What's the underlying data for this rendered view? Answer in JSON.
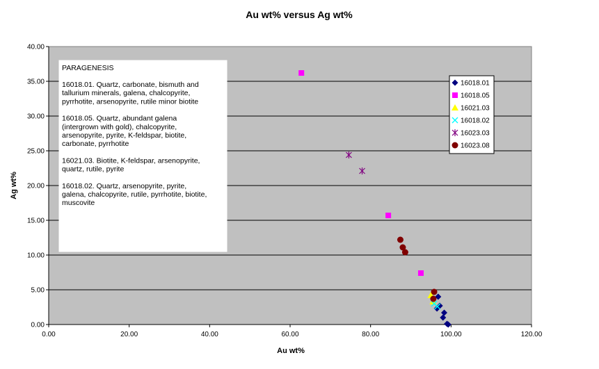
{
  "chart_data": {
    "type": "scatter",
    "title": "Au wt% versus Ag wt%",
    "xlabel": "Au wt%",
    "ylabel": "Ag wt%",
    "xlim": [
      0,
      120
    ],
    "ylim": [
      0,
      40
    ],
    "x_ticks": [
      "0.00",
      "20.00",
      "40.00",
      "60.00",
      "80.00",
      "100.00",
      "120.00"
    ],
    "y_ticks": [
      "0.00",
      "5.00",
      "10.00",
      "15.00",
      "20.00",
      "25.00",
      "30.00",
      "35.00",
      "40.00"
    ],
    "grid": true,
    "plot_background": "#c0c0c0",
    "legend": "right",
    "series": [
      {
        "name": "16018.01",
        "marker": "diamond",
        "color": "#000080",
        "points": [
          [
            96.8,
            4.0
          ],
          [
            97.2,
            2.7
          ],
          [
            96.5,
            2.3
          ],
          [
            98.3,
            1.7
          ],
          [
            98.0,
            1.0
          ],
          [
            99.0,
            0.1
          ],
          [
            99.3,
            0.0
          ]
        ]
      },
      {
        "name": "16018.05",
        "marker": "square",
        "color": "#ff00ff",
        "points": [
          [
            62.8,
            36.2
          ],
          [
            84.4,
            15.7
          ],
          [
            92.5,
            7.4
          ]
        ]
      },
      {
        "name": "16021.03",
        "marker": "triangle",
        "color": "#ffff00",
        "points": [
          [
            95.0,
            4.2
          ],
          [
            95.5,
            3.3
          ]
        ]
      },
      {
        "name": "16018.02",
        "marker": "x",
        "color": "#00ffff",
        "points": [
          [
            95.8,
            3.0
          ],
          [
            96.6,
            2.6
          ]
        ]
      },
      {
        "name": "16023.03",
        "marker": "star",
        "color": "#800080",
        "points": [
          [
            74.6,
            24.4
          ],
          [
            77.9,
            22.1
          ]
        ]
      },
      {
        "name": "16023.08",
        "marker": "circle",
        "color": "#800000",
        "points": [
          [
            87.4,
            12.2
          ],
          [
            88.0,
            11.1
          ],
          [
            88.6,
            10.4
          ],
          [
            95.8,
            4.7
          ],
          [
            95.6,
            3.7
          ]
        ]
      }
    ],
    "annotation": {
      "heading": "PARAGENESIS",
      "paragraphs": [
        [
          "16018.01. Quartz,  carbonate,  bismuth and",
          "tallurium minerals,  galena,  chalcopyrite,",
          "pyrrhotite,  arsenopyrite,  rutile minor biotite"
        ],
        [
          "16018.05. Quartz,  abundant galena",
          "(intergrown with gold),  chalcopyrite,",
          "arsenopyrite,  pyrite,  K-feldspar,  biotite,",
          "carbonate,  pyrrhotite"
        ],
        [
          "16021.03. Biotite,  K-feldspar,  arsenopyrite,",
          "quartz,  rutile,  pyrite"
        ],
        [
          "16018.02. Quartz,  arsenopyrite,  pyrite,",
          "galena,  chalcopyrite,  rutile,  pyrrhotite,  biotite,",
          "muscovite"
        ]
      ]
    }
  }
}
